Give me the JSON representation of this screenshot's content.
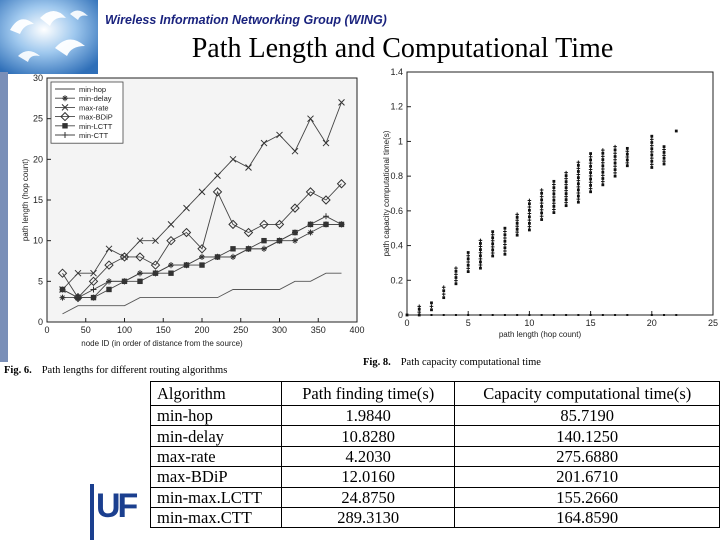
{
  "header": {
    "group_name": "Wireless Information Networking Group (WING)",
    "slide_title": "Path Length and Computational Time"
  },
  "captions": {
    "fig6_number": "Fig. 6.",
    "fig6_text": "Path lengths for different routing algorithms",
    "fig8_number": "Fig. 8.",
    "fig8_text": "Path capacity computational time"
  },
  "uf_logo_text": "UF",
  "table": {
    "headers": [
      "Algorithm",
      "Path finding time(s)",
      "Capacity computational time(s)"
    ],
    "rows": [
      [
        "min-hop",
        "1.9840",
        "85.7190"
      ],
      [
        "min-delay",
        "10.8280",
        "140.1250"
      ],
      [
        "max-rate",
        "4.2030",
        "275.6880"
      ],
      [
        "max-BDiP",
        "12.0160",
        "201.6710"
      ],
      [
        "min-max.LCTT",
        "24.8750",
        "155.2660"
      ],
      [
        "min-max.CTT",
        "289.3130",
        "164.8590"
      ]
    ]
  },
  "chart_data": [
    {
      "type": "line",
      "title": "",
      "xlabel": "node ID (in order of distance from the source)",
      "ylabel": "path length (hop count)",
      "xlim": [
        0,
        400
      ],
      "ylim": [
        0,
        30
      ],
      "xticks": [
        0,
        50,
        100,
        150,
        200,
        250,
        300,
        350,
        400
      ],
      "yticks": [
        0,
        5,
        10,
        15,
        20,
        25,
        30
      ],
      "legend_position": "top-left",
      "x": [
        20,
        40,
        60,
        80,
        100,
        120,
        140,
        160,
        180,
        200,
        220,
        240,
        260,
        280,
        300,
        320,
        340,
        360,
        380
      ],
      "series": [
        {
          "name": "min-hop",
          "marker": "none",
          "values": [
            1,
            2,
            2,
            2,
            2,
            3,
            3,
            3,
            3,
            3,
            3,
            4,
            4,
            4,
            4,
            5,
            5,
            6,
            6
          ]
        },
        {
          "name": "min-delay",
          "marker": "star",
          "values": [
            3,
            3,
            3,
            5,
            5,
            6,
            6,
            7,
            7,
            8,
            8,
            8,
            9,
            9,
            10,
            10,
            11,
            12,
            12
          ]
        },
        {
          "name": "max-rate",
          "marker": "x",
          "values": [
            4,
            6,
            6,
            9,
            8,
            10,
            10,
            12,
            14,
            16,
            18,
            20,
            19,
            22,
            23,
            21,
            25,
            22,
            27
          ]
        },
        {
          "name": "max-BDiP",
          "marker": "diamond",
          "values": [
            6,
            3,
            5,
            7,
            8,
            8,
            7,
            10,
            11,
            9,
            16,
            12,
            11,
            12,
            12,
            14,
            16,
            15,
            17
          ]
        },
        {
          "name": "min-LCTT",
          "marker": "square",
          "values": [
            4,
            3,
            3,
            4,
            5,
            5,
            6,
            6,
            7,
            7,
            8,
            9,
            9,
            10,
            10,
            11,
            12,
            12,
            12
          ]
        },
        {
          "name": "min-CTT",
          "marker": "plus",
          "values": [
            4,
            3,
            4,
            5,
            5,
            6,
            6,
            7,
            7,
            8,
            8,
            8,
            9,
            9,
            10,
            11,
            12,
            13,
            12
          ]
        }
      ]
    },
    {
      "type": "scatter",
      "title": "",
      "xlabel": "path length (hop count)",
      "ylabel": "path capacity computational time(s)",
      "xlim": [
        0,
        25
      ],
      "ylim": [
        0,
        1.4
      ],
      "xticks": [
        0,
        5,
        10,
        15,
        20,
        25
      ],
      "yticks": [
        0,
        0.2,
        0.4,
        0.6,
        0.8,
        1,
        1.2,
        1.4
      ],
      "clusters": [
        {
          "x": 0,
          "ymin": 0,
          "ymax": 0
        },
        {
          "x": 1,
          "ymin": 0,
          "ymax": 0.05
        },
        {
          "x": 2,
          "ymin": 0.03,
          "ymax": 0.07
        },
        {
          "x": 3,
          "ymin": 0.1,
          "ymax": 0.16
        },
        {
          "x": 4,
          "ymin": 0.18,
          "ymax": 0.27
        },
        {
          "x": 5,
          "ymin": 0.25,
          "ymax": 0.36
        },
        {
          "x": 6,
          "ymin": 0.27,
          "ymax": 0.43
        },
        {
          "x": 7,
          "ymin": 0.34,
          "ymax": 0.48
        },
        {
          "x": 8,
          "ymin": 0.35,
          "ymax": 0.5
        },
        {
          "x": 9,
          "ymin": 0.46,
          "ymax": 0.58
        },
        {
          "x": 10,
          "ymin": 0.49,
          "ymax": 0.66
        },
        {
          "x": 11,
          "ymin": 0.55,
          "ymax": 0.72
        },
        {
          "x": 12,
          "ymin": 0.59,
          "ymax": 0.77
        },
        {
          "x": 13,
          "ymin": 0.63,
          "ymax": 0.82
        },
        {
          "x": 14,
          "ymin": 0.65,
          "ymax": 0.88
        },
        {
          "x": 15,
          "ymin": 0.71,
          "ymax": 0.93
        },
        {
          "x": 16,
          "ymin": 0.75,
          "ymax": 0.95
        },
        {
          "x": 17,
          "ymin": 0.8,
          "ymax": 0.97
        },
        {
          "x": 18,
          "ymin": 0.86,
          "ymax": 0.96
        },
        {
          "x": 20,
          "ymin": 0.85,
          "ymax": 1.03
        },
        {
          "x": 21,
          "ymin": 0.87,
          "ymax": 0.97
        },
        {
          "x": 22,
          "ymin": 1.06,
          "ymax": 1.06
        }
      ]
    }
  ]
}
